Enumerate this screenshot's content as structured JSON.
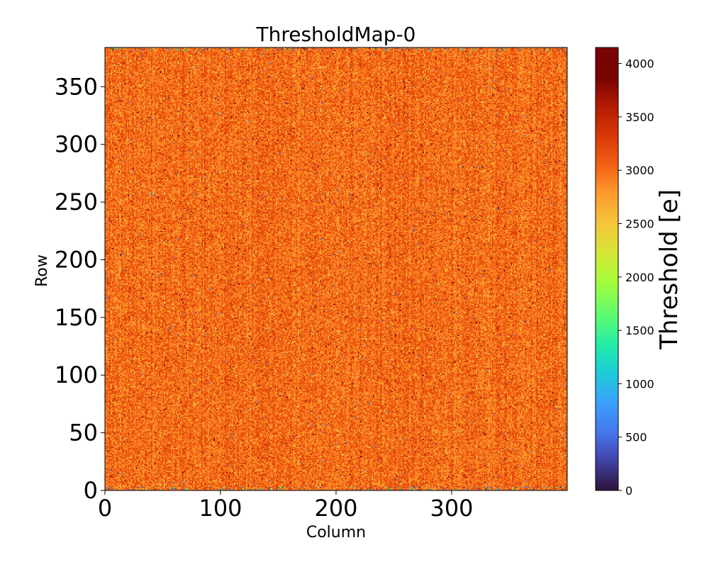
{
  "chart_data": {
    "type": "heatmap",
    "title": "ThresholdMap-0",
    "xlabel": "Column",
    "ylabel": "Row",
    "xlim": [
      0,
      400
    ],
    "ylim": [
      0,
      384
    ],
    "x_ticks": [
      "0",
      "100",
      "200",
      "300"
    ],
    "y_ticks": [
      "0",
      "50",
      "100",
      "150",
      "200",
      "250",
      "300",
      "350"
    ],
    "x_tick_values": [
      0,
      100,
      200,
      300
    ],
    "y_tick_values": [
      0,
      50,
      100,
      150,
      200,
      250,
      300,
      350
    ],
    "colorbar": {
      "label": "Threshold [e]",
      "range": [
        0,
        4150
      ],
      "tick_values": [
        0,
        500,
        1000,
        1500,
        2000,
        2500,
        3000,
        3500,
        4000
      ],
      "ticks": [
        "0",
        "500",
        "1000",
        "1500",
        "2000",
        "2500",
        "3000",
        "3500",
        "4000"
      ],
      "colormap": "turbo"
    },
    "value_distribution": {
      "typical_mean": 3000,
      "typical_spread": 250,
      "low_outliers_near_edges": true
    }
  }
}
